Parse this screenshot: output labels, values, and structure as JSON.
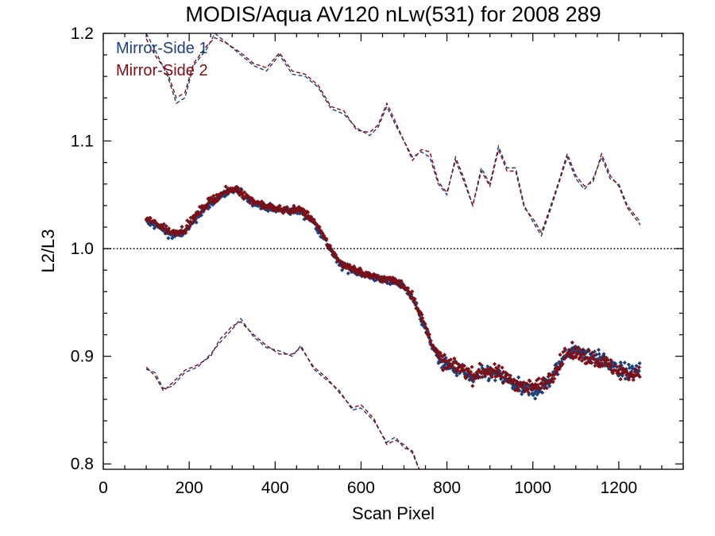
{
  "chart_data": {
    "type": "scatter",
    "title": "MODIS/Aqua AV120 nLw(531) for 2008 289",
    "xlabel": "Scan Pixel",
    "ylabel": "L2/L3",
    "xlim": [
      0,
      1350
    ],
    "ylim": [
      0.795,
      1.2
    ],
    "xticks": [
      0,
      200,
      400,
      600,
      800,
      1000,
      1200
    ],
    "yticks": [
      0.8,
      0.9,
      1.0,
      1.1,
      1.2
    ],
    "ytick_labels": [
      "0.8",
      "0.9",
      "1.0",
      "1.1",
      "1.2"
    ],
    "reference_line": {
      "y": 1.0,
      "style": "dotted"
    },
    "legend": {
      "position": "top-left",
      "entries": [
        "Mirror-Side 1",
        "Mirror-Side 2"
      ]
    },
    "colors": {
      "ms1": "#1f3f7a",
      "ms2": "#7a1018"
    },
    "series": [
      {
        "name": "Mirror-Side 1",
        "color": "#1f3f7a",
        "mean_profile": [
          [
            100,
            1.025
          ],
          [
            130,
            1.02
          ],
          [
            160,
            1.012
          ],
          [
            190,
            1.015
          ],
          [
            220,
            1.03
          ],
          [
            250,
            1.042
          ],
          [
            280,
            1.05
          ],
          [
            310,
            1.055
          ],
          [
            340,
            1.045
          ],
          [
            370,
            1.04
          ],
          [
            400,
            1.036
          ],
          [
            430,
            1.035
          ],
          [
            460,
            1.035
          ],
          [
            490,
            1.025
          ],
          [
            520,
            1.005
          ],
          [
            550,
            0.985
          ],
          [
            580,
            0.98
          ],
          [
            610,
            0.975
          ],
          [
            640,
            0.972
          ],
          [
            670,
            0.97
          ],
          [
            700,
            0.965
          ],
          [
            720,
            0.955
          ],
          [
            740,
            0.935
          ],
          [
            760,
            0.915
          ],
          [
            780,
            0.898
          ],
          [
            800,
            0.89
          ],
          [
            830,
            0.888
          ],
          [
            860,
            0.878
          ],
          [
            890,
            0.885
          ],
          [
            920,
            0.882
          ],
          [
            950,
            0.875
          ],
          [
            980,
            0.868
          ],
          [
            1010,
            0.868
          ],
          [
            1040,
            0.878
          ],
          [
            1060,
            0.89
          ],
          [
            1080,
            0.905
          ],
          [
            1110,
            0.905
          ],
          [
            1140,
            0.9
          ],
          [
            1170,
            0.895
          ],
          [
            1200,
            0.887
          ],
          [
            1230,
            0.885
          ],
          [
            1250,
            0.888
          ]
        ],
        "upper_envelope": [
          [
            100,
            1.2
          ],
          [
            120,
            1.185
          ],
          [
            150,
            1.16
          ],
          [
            170,
            1.135
          ],
          [
            190,
            1.14
          ],
          [
            210,
            1.17
          ],
          [
            240,
            1.185
          ],
          [
            260,
            1.2
          ],
          [
            290,
            1.19
          ],
          [
            320,
            1.18
          ],
          [
            350,
            1.17
          ],
          [
            380,
            1.165
          ],
          [
            410,
            1.18
          ],
          [
            440,
            1.162
          ],
          [
            470,
            1.16
          ],
          [
            500,
            1.15
          ],
          [
            530,
            1.13
          ],
          [
            560,
            1.125
          ],
          [
            590,
            1.112
          ],
          [
            620,
            1.105
          ],
          [
            640,
            1.113
          ],
          [
            660,
            1.132
          ],
          [
            680,
            1.115
          ],
          [
            700,
            1.1
          ],
          [
            720,
            1.085
          ],
          [
            740,
            1.09
          ],
          [
            760,
            1.085
          ],
          [
            780,
            1.06
          ],
          [
            800,
            1.05
          ],
          [
            820,
            1.085
          ],
          [
            840,
            1.065
          ],
          [
            860,
            1.04
          ],
          [
            880,
            1.075
          ],
          [
            900,
            1.06
          ],
          [
            920,
            1.095
          ],
          [
            940,
            1.075
          ],
          [
            960,
            1.075
          ],
          [
            980,
            1.04
          ],
          [
            1000,
            1.025
          ],
          [
            1020,
            1.012
          ],
          [
            1040,
            1.035
          ],
          [
            1060,
            1.06
          ],
          [
            1080,
            1.085
          ],
          [
            1100,
            1.065
          ],
          [
            1120,
            1.055
          ],
          [
            1140,
            1.065
          ],
          [
            1160,
            1.085
          ],
          [
            1180,
            1.065
          ],
          [
            1200,
            1.06
          ],
          [
            1220,
            1.04
          ],
          [
            1250,
            1.025
          ]
        ],
        "lower_envelope": [
          [
            100,
            0.888
          ],
          [
            120,
            0.885
          ],
          [
            140,
            0.87
          ],
          [
            160,
            0.872
          ],
          [
            190,
            0.885
          ],
          [
            220,
            0.89
          ],
          [
            250,
            0.902
          ],
          [
            270,
            0.912
          ],
          [
            300,
            0.925
          ],
          [
            320,
            0.935
          ],
          [
            350,
            0.918
          ],
          [
            380,
            0.908
          ],
          [
            410,
            0.905
          ],
          [
            440,
            0.9
          ],
          [
            460,
            0.91
          ],
          [
            490,
            0.888
          ],
          [
            520,
            0.878
          ],
          [
            550,
            0.868
          ],
          [
            580,
            0.85
          ],
          [
            600,
            0.852
          ],
          [
            630,
            0.84
          ],
          [
            660,
            0.82
          ],
          [
            680,
            0.825
          ],
          [
            700,
            0.815
          ],
          [
            720,
            0.812
          ],
          [
            740,
            0.79
          ]
        ]
      },
      {
        "name": "Mirror-Side 2",
        "color": "#7a1018",
        "mean_profile": [
          [
            100,
            1.028
          ],
          [
            130,
            1.022
          ],
          [
            160,
            1.015
          ],
          [
            190,
            1.018
          ],
          [
            220,
            1.033
          ],
          [
            250,
            1.045
          ],
          [
            280,
            1.052
          ],
          [
            310,
            1.056
          ],
          [
            340,
            1.046
          ],
          [
            370,
            1.041
          ],
          [
            400,
            1.037
          ],
          [
            430,
            1.036
          ],
          [
            460,
            1.036
          ],
          [
            490,
            1.026
          ],
          [
            520,
            1.006
          ],
          [
            550,
            0.987
          ],
          [
            580,
            0.982
          ],
          [
            610,
            0.976
          ],
          [
            640,
            0.973
          ],
          [
            670,
            0.971
          ],
          [
            700,
            0.966
          ],
          [
            720,
            0.956
          ],
          [
            740,
            0.937
          ],
          [
            760,
            0.917
          ],
          [
            780,
            0.9
          ],
          [
            800,
            0.892
          ],
          [
            830,
            0.89
          ],
          [
            860,
            0.882
          ],
          [
            890,
            0.887
          ],
          [
            920,
            0.884
          ],
          [
            950,
            0.878
          ],
          [
            980,
            0.872
          ],
          [
            1010,
            0.872
          ],
          [
            1040,
            0.88
          ],
          [
            1060,
            0.892
          ],
          [
            1080,
            0.903
          ],
          [
            1110,
            0.902
          ],
          [
            1140,
            0.898
          ],
          [
            1170,
            0.893
          ],
          [
            1200,
            0.886
          ],
          [
            1230,
            0.883
          ],
          [
            1250,
            0.886
          ]
        ],
        "upper_envelope": [
          [
            100,
            1.195
          ],
          [
            120,
            1.18
          ],
          [
            150,
            1.163
          ],
          [
            170,
            1.14
          ],
          [
            190,
            1.145
          ],
          [
            210,
            1.172
          ],
          [
            240,
            1.188
          ],
          [
            260,
            1.196
          ],
          [
            290,
            1.19
          ],
          [
            320,
            1.182
          ],
          [
            350,
            1.172
          ],
          [
            380,
            1.168
          ],
          [
            410,
            1.182
          ],
          [
            440,
            1.165
          ],
          [
            470,
            1.162
          ],
          [
            500,
            1.152
          ],
          [
            530,
            1.132
          ],
          [
            560,
            1.128
          ],
          [
            590,
            1.11
          ],
          [
            620,
            1.108
          ],
          [
            640,
            1.115
          ],
          [
            660,
            1.135
          ],
          [
            680,
            1.118
          ],
          [
            700,
            1.1
          ],
          [
            720,
            1.082
          ],
          [
            740,
            1.092
          ],
          [
            760,
            1.09
          ],
          [
            780,
            1.062
          ],
          [
            800,
            1.052
          ],
          [
            820,
            1.082
          ],
          [
            840,
            1.062
          ],
          [
            860,
            1.04
          ],
          [
            880,
            1.072
          ],
          [
            900,
            1.058
          ],
          [
            920,
            1.092
          ],
          [
            940,
            1.072
          ],
          [
            960,
            1.072
          ],
          [
            980,
            1.038
          ],
          [
            1000,
            1.028
          ],
          [
            1020,
            1.015
          ],
          [
            1040,
            1.038
          ],
          [
            1060,
            1.062
          ],
          [
            1080,
            1.088
          ],
          [
            1100,
            1.068
          ],
          [
            1120,
            1.058
          ],
          [
            1140,
            1.062
          ],
          [
            1160,
            1.088
          ],
          [
            1180,
            1.068
          ],
          [
            1200,
            1.058
          ],
          [
            1220,
            1.038
          ],
          [
            1250,
            1.022
          ]
        ],
        "lower_envelope": [
          [
            100,
            0.89
          ],
          [
            120,
            0.882
          ],
          [
            140,
            0.868
          ],
          [
            160,
            0.875
          ],
          [
            190,
            0.887
          ],
          [
            220,
            0.892
          ],
          [
            250,
            0.9
          ],
          [
            270,
            0.915
          ],
          [
            300,
            0.928
          ],
          [
            320,
            0.932
          ],
          [
            350,
            0.92
          ],
          [
            380,
            0.91
          ],
          [
            410,
            0.902
          ],
          [
            440,
            0.902
          ],
          [
            460,
            0.908
          ],
          [
            490,
            0.89
          ],
          [
            520,
            0.88
          ],
          [
            550,
            0.866
          ],
          [
            580,
            0.852
          ],
          [
            600,
            0.855
          ],
          [
            630,
            0.842
          ],
          [
            660,
            0.818
          ],
          [
            680,
            0.822
          ],
          [
            700,
            0.818
          ],
          [
            720,
            0.81
          ],
          [
            740,
            0.79
          ]
        ]
      }
    ]
  }
}
